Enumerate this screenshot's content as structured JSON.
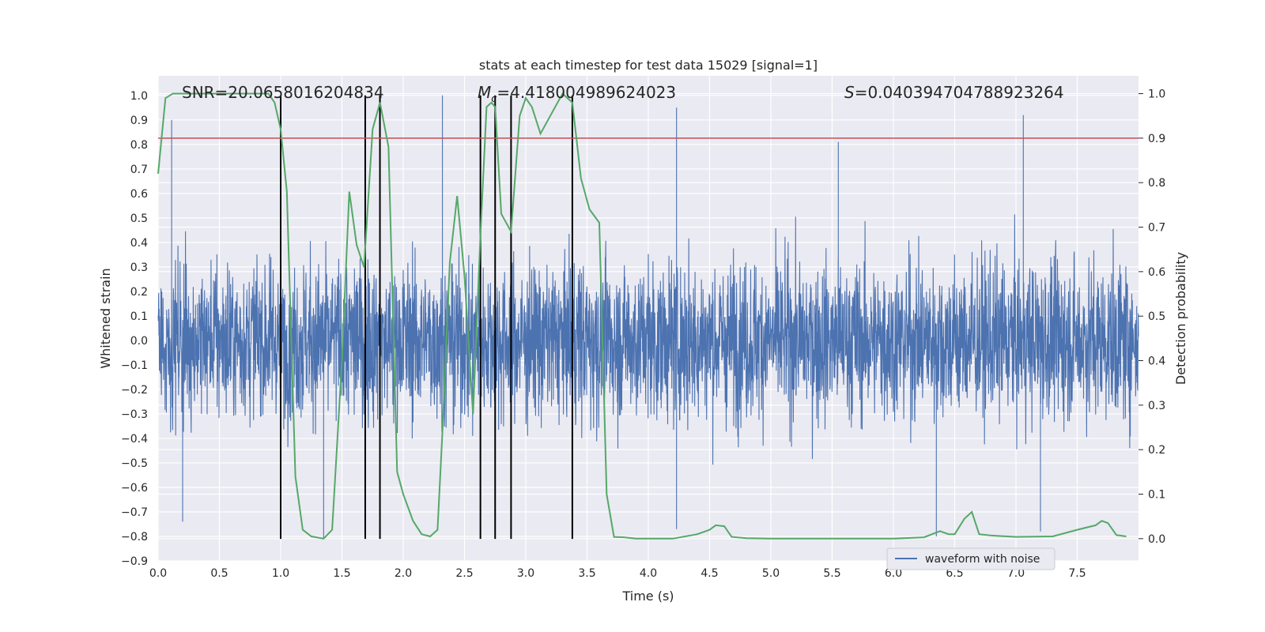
{
  "chart_data": {
    "type": "line",
    "title": "stats at each timestep for test data 15029 [signal=1]",
    "xlabel": "Time (s)",
    "ylabel": "Whitened strain",
    "ylabel_right": "Detection probability",
    "xlim": [
      0.0,
      8.0
    ],
    "ylim": [
      -0.9,
      1.08
    ],
    "ylim_right": [
      -0.05,
      1.04
    ],
    "x_ticks": [
      "0.0",
      "0.5",
      "1.0",
      "1.5",
      "2.0",
      "2.5",
      "3.0",
      "3.5",
      "4.0",
      "4.5",
      "5.0",
      "5.5",
      "6.0",
      "6.5",
      "7.0",
      "7.5"
    ],
    "y_ticks": [
      "−0.9",
      "−0.8",
      "−0.7",
      "−0.6",
      "−0.5",
      "−0.4",
      "−0.3",
      "−0.2",
      "−0.1",
      "0.0",
      "0.1",
      "0.2",
      "0.3",
      "0.4",
      "0.5",
      "0.6",
      "0.7",
      "0.8",
      "0.9",
      "1.0"
    ],
    "y_ticks_right": [
      "0.0",
      "0.1",
      "0.2",
      "0.3",
      "0.4",
      "0.5",
      "0.6",
      "0.7",
      "0.8",
      "0.9",
      "1.0"
    ],
    "grid": true,
    "legend": {
      "entries": [
        "waveform with noise"
      ],
      "placement": "lower-right"
    },
    "annotations": {
      "snr": "SNR=20.0658016204834",
      "mc": "=4.418004989624023",
      "mc_symbol": "M",
      "mc_sub": "c",
      "s": "=0.040394704788923264",
      "s_symbol": "S"
    },
    "threshold": {
      "axis": "right",
      "value": 0.9,
      "color": "#c44e52"
    },
    "vertical_lines": {
      "x": [
        1.0,
        1.69,
        1.81,
        2.63,
        2.75,
        2.88,
        3.38
      ],
      "ymin": -0.81,
      "ymax": 1.0,
      "color": "#000000"
    },
    "series": [
      {
        "name": "waveform with noise",
        "axis": "left",
        "color": "#4c72b0",
        "description": "dense whitened-strain trace, roughly ±0.45 noise band, sampled every ~0.001 s",
        "peaks": [
          {
            "x": 0.11,
            "y": 0.9
          },
          {
            "x": 2.32,
            "y": 1.0
          },
          {
            "x": 4.23,
            "y": 0.95
          },
          {
            "x": 7.06,
            "y": 0.92
          },
          {
            "x": 5.55,
            "y": 0.81
          },
          {
            "x": 1.35,
            "y": -0.81
          },
          {
            "x": 6.35,
            "y": -0.8
          },
          {
            "x": 7.2,
            "y": -0.78
          },
          {
            "x": 4.23,
            "y": -0.77
          },
          {
            "x": 0.2,
            "y": -0.74
          }
        ]
      },
      {
        "name": "Detection probability",
        "axis": "right",
        "color": "#55a868",
        "x": [
          0.0,
          0.06,
          0.12,
          0.2,
          0.35,
          0.5,
          0.7,
          0.9,
          0.95,
          1.0,
          1.05,
          1.12,
          1.18,
          1.25,
          1.35,
          1.42,
          1.5,
          1.56,
          1.62,
          1.68,
          1.75,
          1.81,
          1.88,
          1.95,
          2.0,
          2.08,
          2.15,
          2.22,
          2.28,
          2.32,
          2.38,
          2.44,
          2.5,
          2.57,
          2.63,
          2.68,
          2.72,
          2.75,
          2.8,
          2.88,
          2.95,
          3.0,
          3.05,
          3.12,
          3.2,
          3.3,
          3.38,
          3.45,
          3.52,
          3.6,
          3.66,
          3.72,
          3.8,
          3.9,
          4.0,
          4.2,
          4.4,
          4.5,
          4.55,
          4.62,
          4.68,
          4.8,
          5.0,
          5.5,
          6.0,
          6.25,
          6.38,
          6.45,
          6.5,
          6.58,
          6.64,
          6.7,
          6.8,
          7.0,
          7.3,
          7.5,
          7.65,
          7.7,
          7.75,
          7.82,
          7.9
        ],
        "y": [
          0.82,
          0.99,
          1.0,
          1.0,
          1.0,
          1.0,
          1.0,
          1.0,
          0.98,
          0.92,
          0.78,
          0.14,
          0.02,
          0.005,
          0.0,
          0.02,
          0.4,
          0.78,
          0.66,
          0.61,
          0.92,
          0.98,
          0.88,
          0.15,
          0.1,
          0.04,
          0.01,
          0.005,
          0.02,
          0.24,
          0.62,
          0.77,
          0.59,
          0.28,
          0.68,
          0.97,
          0.98,
          0.97,
          0.73,
          0.69,
          0.95,
          0.99,
          0.97,
          0.91,
          0.95,
          1.0,
          0.98,
          0.81,
          0.74,
          0.71,
          0.1,
          0.004,
          0.003,
          0.0,
          0.0,
          0.0,
          0.01,
          0.02,
          0.03,
          0.028,
          0.004,
          0.001,
          0.0,
          0.0,
          0.0,
          0.003,
          0.017,
          0.01,
          0.01,
          0.045,
          0.06,
          0.01,
          0.007,
          0.004,
          0.005,
          0.02,
          0.03,
          0.04,
          0.035,
          0.008,
          0.005
        ]
      }
    ]
  }
}
